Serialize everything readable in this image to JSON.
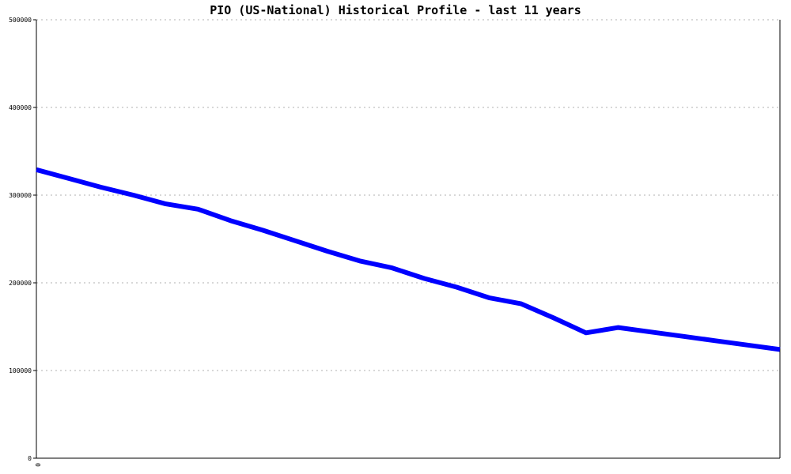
{
  "chart_data": {
    "type": "line",
    "title": "PIO (US-National) Historical Profile - last 11 years",
    "xlabel": "",
    "ylabel": "",
    "ylim": [
      0,
      500000
    ],
    "yticks": [
      0,
      100000,
      200000,
      300000,
      400000,
      500000
    ],
    "ytick_labels": [
      "0",
      "100000",
      "200000",
      "300000",
      "400000",
      "500000"
    ],
    "xtick_labels": [
      "0"
    ],
    "grid": true,
    "legend": "none",
    "line_color": "#0000ff",
    "series": [
      {
        "values": [
          329000,
          319000,
          309000,
          300000,
          290000,
          284000,
          271000,
          260000,
          248000,
          236000,
          225000,
          217000,
          205000,
          195000,
          183000,
          176000,
          160000,
          143000,
          149000,
          144000,
          139000,
          134000,
          129000,
          124000
        ]
      }
    ]
  }
}
